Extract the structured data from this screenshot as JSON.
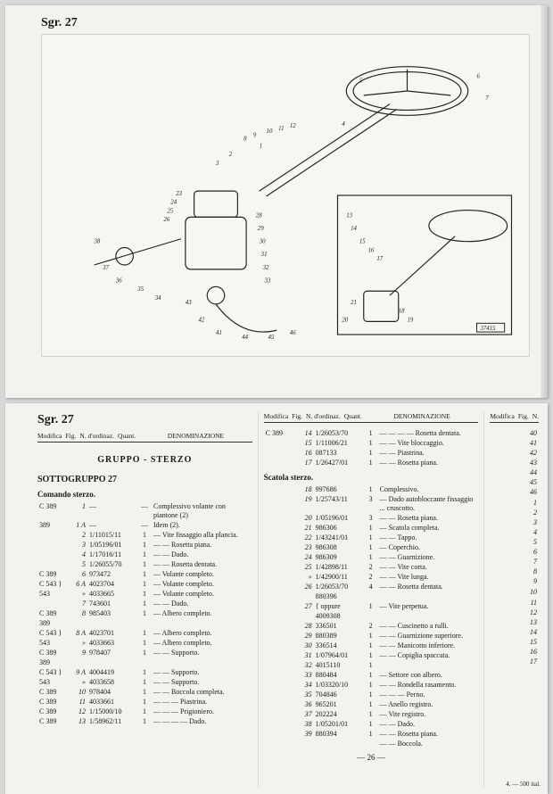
{
  "header": {
    "sgr_label": "Sgr. 27"
  },
  "diagram": {
    "callout_numbers": [
      1,
      2,
      3,
      4,
      5,
      6,
      7,
      8,
      9,
      10,
      11,
      12,
      13,
      14,
      15,
      16,
      17,
      18,
      19,
      20,
      21,
      22,
      23,
      24,
      25,
      26,
      27,
      28,
      29,
      30,
      31,
      32,
      33,
      34,
      35,
      36,
      37,
      38,
      39,
      40,
      41,
      42,
      43,
      44,
      45,
      46
    ],
    "inset_label": "37415"
  },
  "columnHeaders": {
    "modifica": "Modifica",
    "fig": "Fig.",
    "n_ordinaz": "N. d'ordinaz.",
    "quant": "Quant.",
    "denominazione": "DENOMINAZIONE",
    "n": "N."
  },
  "group": {
    "label": "GRUPPO  -  STERZO"
  },
  "subgroup": {
    "label": "SOTTOGRUPPO 27"
  },
  "sections": {
    "comando": "Comando sterzo.",
    "scatola": "Scatola sterzo."
  },
  "partsLeft": [
    {
      "mod": "C 389",
      "fig": "1",
      "ord": "—",
      "q": "—",
      "denom": "Complessivo volante con piantone (2)"
    },
    {
      "mod": "389",
      "fig": "1 A",
      "ord": "—",
      "q": "—",
      "denom": "Idem (2)."
    },
    {
      "mod": "",
      "fig": "2",
      "ord": "1/11015/11",
      "q": "1",
      "denom": "— Vite fissaggio alla plancia."
    },
    {
      "mod": "",
      "fig": "3",
      "ord": "1/05196/01",
      "q": "1",
      "denom": "— — Rosetta piana."
    },
    {
      "mod": "",
      "fig": "4",
      "ord": "1/17016/11",
      "q": "1",
      "denom": "— — Dado."
    },
    {
      "mod": "",
      "fig": "5",
      "ord": "1/26055/70",
      "q": "1",
      "denom": "— — Rosetta dentata."
    },
    {
      "mod": "C 389",
      "fig": "6",
      "ord": "973472",
      "q": "1",
      "denom": "— Volante completo."
    },
    {
      "mod": "C 543 }",
      "fig": "6 A",
      "ord": "4023704",
      "q": "1",
      "denom": "— Volante completo."
    },
    {
      "mod": "543",
      "fig": "»",
      "ord": "4033665",
      "q": "1",
      "denom": "— Volante completo."
    },
    {
      "mod": "",
      "fig": "7",
      "ord": "743601",
      "q": "1",
      "denom": "— — Dado."
    },
    {
      "mod": "C 389",
      "fig": "8",
      "ord": "985403",
      "q": "1",
      "denom": "— Albero completo."
    },
    {
      "mod": "389",
      "fig": "",
      "ord": "",
      "q": "",
      "denom": ""
    },
    {
      "mod": "C 543 }",
      "fig": "8 A",
      "ord": "4023701",
      "q": "1",
      "denom": "— Albero completo."
    },
    {
      "mod": "543",
      "fig": "»",
      "ord": "4033663",
      "q": "1",
      "denom": "— Albero completo."
    },
    {
      "mod": "C 389",
      "fig": "9",
      "ord": "978407",
      "q": "1",
      "denom": "— — Supporto."
    },
    {
      "mod": "389",
      "fig": "",
      "ord": "",
      "q": "",
      "denom": ""
    },
    {
      "mod": "C 543 }",
      "fig": "9 A",
      "ord": "4004419",
      "q": "1",
      "denom": "— — Supporto."
    },
    {
      "mod": "543",
      "fig": "»",
      "ord": "4033658",
      "q": "1",
      "denom": "— — Supporto."
    },
    {
      "mod": "C 389",
      "fig": "10",
      "ord": "978404",
      "q": "1",
      "denom": "— — Boccola completa."
    },
    {
      "mod": "C 389",
      "fig": "11",
      "ord": "4033661",
      "q": "1",
      "denom": "— — — Piastrina."
    },
    {
      "mod": "C 389",
      "fig": "12",
      "ord": "1/15000/10",
      "q": "1",
      "denom": "— — — Prigioniero."
    },
    {
      "mod": "C 389",
      "fig": "13",
      "ord": "1/58962/11",
      "q": "1",
      "denom": "— — — — Dado."
    }
  ],
  "partsRight": [
    {
      "mod": "C 389",
      "fig": "14",
      "ord": "1/26053/70",
      "q": "1",
      "denom": "— — — — Rosetta dentata."
    },
    {
      "mod": "",
      "fig": "15",
      "ord": "1/11006/21",
      "q": "1",
      "denom": "— — Vite bloccaggio."
    },
    {
      "mod": "",
      "fig": "16",
      "ord": "087133",
      "q": "1",
      "denom": "— — Piastrina."
    },
    {
      "mod": "",
      "fig": "17",
      "ord": "1/26427/01",
      "q": "1",
      "denom": "— — Rosetta piana."
    },
    {
      "mod": "",
      "fig": "18",
      "ord": "997686",
      "q": "1",
      "denom": "Complessivo."
    },
    {
      "mod": "",
      "fig": "19",
      "ord": "1/25743/11",
      "q": "3",
      "denom": "— Dado autobloccante fissaggio ... cruscotto."
    },
    {
      "mod": "",
      "fig": "20",
      "ord": "1/05196/01",
      "q": "3",
      "denom": "— — Rosetta piana."
    },
    {
      "mod": "",
      "fig": "21",
      "ord": "986306",
      "q": "1",
      "denom": "— Scatola completa."
    },
    {
      "mod": "",
      "fig": "22",
      "ord": "1/43241/01",
      "q": "1",
      "denom": "— — Tappo."
    },
    {
      "mod": "",
      "fig": "23",
      "ord": "986308",
      "q": "1",
      "denom": "— Coperchio."
    },
    {
      "mod": "",
      "fig": "24",
      "ord": "986309",
      "q": "1",
      "denom": "— — Guarnizione."
    },
    {
      "mod": "",
      "fig": "25",
      "ord": "1/42898/11",
      "q": "2",
      "denom": "— — Vite corta."
    },
    {
      "mod": "",
      "fig": "»",
      "ord": "1/42900/11",
      "q": "2",
      "denom": "— — Vite lunga."
    },
    {
      "mod": "",
      "fig": "26",
      "ord": "1/26053/70",
      "q": "4",
      "denom": "— — Rosetta dentata."
    },
    {
      "mod": "",
      "fig": "",
      "ord": "880396",
      "q": "",
      "denom": ""
    },
    {
      "mod": "",
      "fig": "27",
      "ord": "{ oppure",
      "q": "1",
      "denom": "— Vite perpetua."
    },
    {
      "mod": "",
      "fig": "",
      "ord": "4009308",
      "q": "",
      "denom": ""
    },
    {
      "mod": "",
      "fig": "28",
      "ord": "336501",
      "q": "2",
      "denom": "— — Cuscinetto a rulli."
    },
    {
      "mod": "",
      "fig": "29",
      "ord": "880389",
      "q": "1",
      "denom": "— — Guarnizione superiore."
    },
    {
      "mod": "",
      "fig": "30",
      "ord": "336514",
      "q": "1",
      "denom": "— — Manicotto inferiore."
    },
    {
      "mod": "",
      "fig": "31",
      "ord": "1/07964/01",
      "q": "1",
      "denom": "— — Copiglia spaccata."
    },
    {
      "mod": "",
      "fig": "32",
      "ord": "4015110",
      "q": "1",
      "denom": ""
    },
    {
      "mod": "",
      "fig": "33",
      "ord": "880484",
      "q": "1",
      "denom": "— Settore con albero."
    },
    {
      "mod": "",
      "fig": "34",
      "ord": "1/03320/10",
      "q": "1",
      "denom": "— — Rondella rasamento."
    },
    {
      "mod": "",
      "fig": "35",
      "ord": "704846",
      "q": "1",
      "denom": "— — — Perno."
    },
    {
      "mod": "",
      "fig": "36",
      "ord": "965201",
      "q": "1",
      "denom": "— Anello registro."
    },
    {
      "mod": "",
      "fig": "37",
      "ord": "202224",
      "q": "1",
      "denom": "— Vite registro."
    },
    {
      "mod": "",
      "fig": "38",
      "ord": "1/05201/01",
      "q": "1",
      "denom": "— — Dado."
    },
    {
      "mod": "",
      "fig": "39",
      "ord": "880394",
      "q": "1",
      "denom": "— — Rosetta piana."
    },
    {
      "mod": "",
      "fig": "",
      "ord": "",
      "q": "",
      "denom": "— — Boccola."
    }
  ],
  "partsFar": [
    {
      "fig": "40"
    },
    {
      "fig": "41"
    },
    {
      "fig": "42"
    },
    {
      "fig": "43"
    },
    {
      "fig": "44"
    },
    {
      "fig": "45"
    },
    {
      "fig": "46"
    },
    {
      "fig": ""
    },
    {
      "fig": "1"
    },
    {
      "fig": "2"
    },
    {
      "fig": "3"
    },
    {
      "fig": "4"
    },
    {
      "fig": "5"
    },
    {
      "fig": "6"
    },
    {
      "fig": "7"
    },
    {
      "fig": "8"
    },
    {
      "fig": "9"
    },
    {
      "fig": ""
    },
    {
      "fig": "10"
    },
    {
      "fig": ""
    },
    {
      "fig": "11"
    },
    {
      "fig": "12"
    },
    {
      "fig": "13"
    },
    {
      "fig": "14"
    },
    {
      "fig": "15"
    },
    {
      "fig": "16"
    },
    {
      "fig": "17"
    }
  ],
  "pageNumber": "— 26 —",
  "farFooter": "4. — 500 ital."
}
